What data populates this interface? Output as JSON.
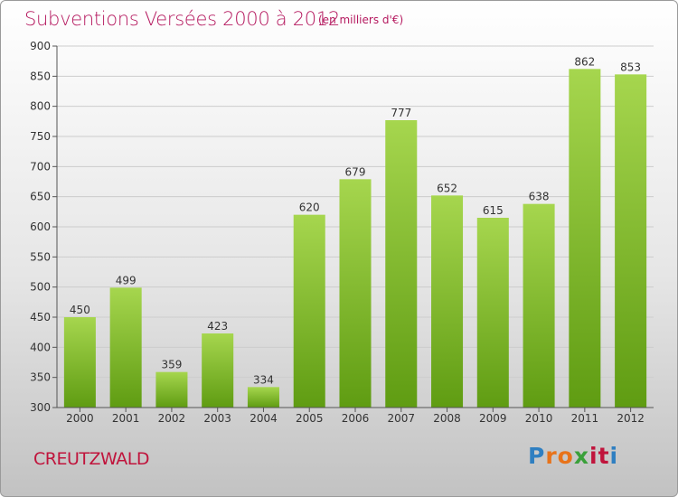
{
  "header": {
    "title": "Subventions Versées 2000 à 2012",
    "subtitle": "(en milliers d'€)"
  },
  "footer": {
    "commune": "CREUTZWALD",
    "logo_letters": [
      "P",
      "r",
      "o",
      "x",
      "i",
      "t",
      "i"
    ],
    "logo_colors": [
      "#2f7fc1",
      "#e8731a",
      "#e8731a",
      "#3aa03a",
      "#c0143c",
      "#c0143c",
      "#2f7fc1"
    ]
  },
  "colors": {
    "title": "#b5195f",
    "bar_light": "#a6d64e",
    "bar_dark": "#5f9c12",
    "grid": "#cccccc",
    "axis": "#555555"
  },
  "chart_data": {
    "type": "bar",
    "title": "Subventions Versées 2000 à 2012",
    "subtitle": "(en milliers d'€)",
    "categories": [
      "2000",
      "2001",
      "2002",
      "2003",
      "2004",
      "2005",
      "2006",
      "2007",
      "2008",
      "2009",
      "2010",
      "2011",
      "2012"
    ],
    "values": [
      450,
      499,
      359,
      423,
      334,
      620,
      679,
      777,
      652,
      615,
      638,
      862,
      853
    ],
    "ylim": [
      300,
      900
    ],
    "yticks": [
      300,
      350,
      400,
      450,
      500,
      550,
      600,
      650,
      700,
      750,
      800,
      850,
      900
    ],
    "grid": true,
    "data_labels": true,
    "xlabel": "",
    "ylabel": ""
  }
}
